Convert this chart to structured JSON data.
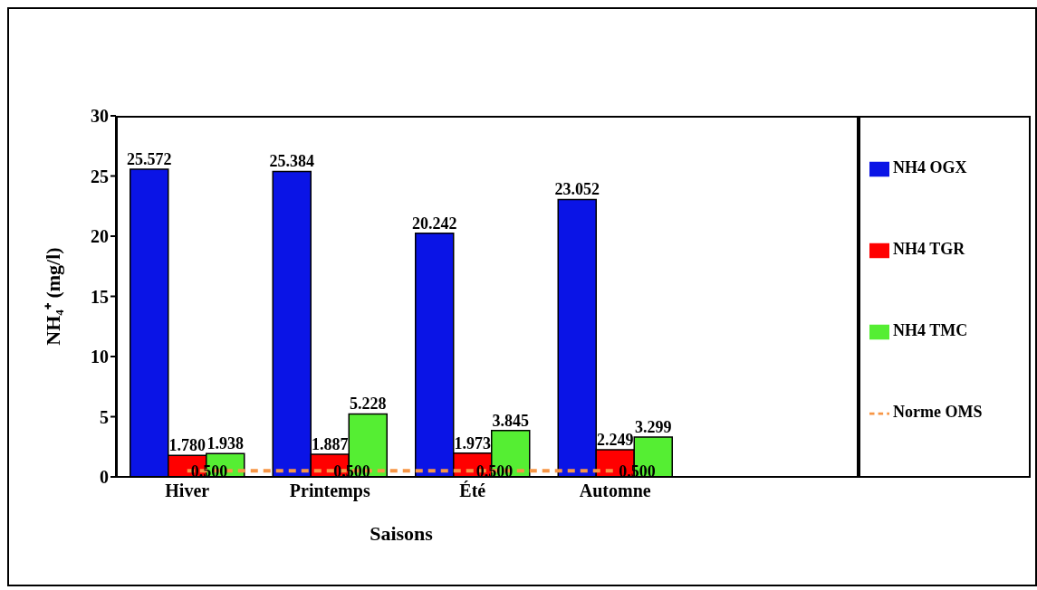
{
  "chart_data": {
    "type": "bar",
    "xlabel": "Saisons",
    "ylabel": "NH₄⁺ (mg/l)",
    "categories": [
      "Hiver",
      "Printemps",
      "Été",
      "Automne"
    ],
    "series": [
      {
        "name": "NH4 OGX",
        "color": "#0a14e6",
        "values": [
          25.572,
          25.384,
          20.242,
          23.052
        ],
        "value_labels": [
          "25.572",
          "25.384",
          "20.242",
          "23.052"
        ]
      },
      {
        "name": "NH4 TGR",
        "color": "#ff0000",
        "values": [
          1.78,
          1.887,
          1.973,
          2.249
        ],
        "value_labels": [
          "1.780",
          "1.887",
          "1.973",
          "2.249"
        ]
      },
      {
        "name": "NH4 TMC",
        "color": "#55ee33",
        "values": [
          1.938,
          5.228,
          3.845,
          3.299
        ],
        "value_labels": [
          "1.938",
          "5.228",
          "3.845",
          "3.299"
        ]
      },
      {
        "name": "Norme OMS",
        "type": "line",
        "color": "#f79646",
        "line_style": "dashed",
        "marker": "none",
        "values": [
          0.5,
          0.5,
          0.5,
          0.5
        ],
        "value_labels": [
          "0.500",
          "0.500",
          "0.500",
          "0.500"
        ]
      }
    ],
    "ylim": [
      0,
      30
    ],
    "yticks": [
      0,
      5,
      10,
      15,
      20,
      25,
      30
    ],
    "grid": false,
    "legend": "right"
  }
}
